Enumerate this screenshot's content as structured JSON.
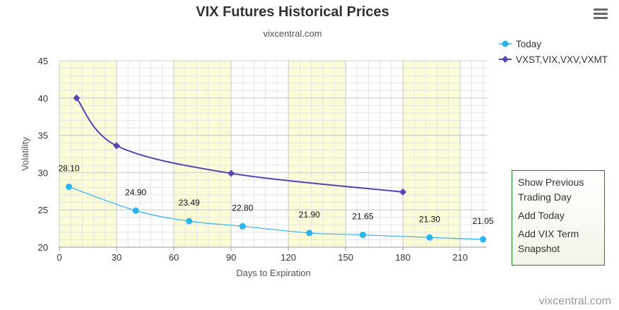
{
  "page": {
    "title": "VIX Futures Historical Prices",
    "subtitle": "vixcentral.com",
    "credit": "vixcentral.com"
  },
  "menu": {
    "icon": "hamburger-menu-icon"
  },
  "side_panel": {
    "items": [
      {
        "label": "Show Previous Trading Day"
      },
      {
        "label": "Add Today"
      },
      {
        "label": "Add VIX Term Snapshot"
      }
    ]
  },
  "colors": {
    "today": "#2db4f0",
    "indices": "#5545b2",
    "band": "#fbfbd8",
    "grid": "#e6e6e6"
  },
  "chart_data": {
    "type": "line",
    "title": "VIX Futures Historical Prices",
    "subtitle": "vixcentral.com",
    "xlabel": "Days to Expiration",
    "ylabel": "Volatility",
    "xlim": [
      0,
      224
    ],
    "ylim": [
      20,
      45
    ],
    "x_ticks": [
      0,
      30,
      60,
      90,
      120,
      150,
      180,
      210
    ],
    "y_ticks": [
      20,
      25,
      30,
      35,
      40,
      45
    ],
    "grid": true,
    "legend_position": "top-right",
    "series": [
      {
        "name": "Today",
        "color": "#2db4f0",
        "marker": "circle",
        "x": [
          5,
          40,
          68,
          96,
          131,
          159,
          194,
          222
        ],
        "y": [
          28.1,
          24.9,
          23.49,
          22.8,
          21.9,
          21.65,
          21.3,
          21.05
        ],
        "labels": [
          "28.10",
          "24.90",
          "23.49",
          "22.80",
          "21.90",
          "21.65",
          "21.30",
          "21.05"
        ]
      },
      {
        "name": "VXST,VIX,VXV,VXMT",
        "color": "#5545b2",
        "marker": "diamond",
        "x": [
          9,
          30,
          90,
          180
        ],
        "y": [
          40.0,
          33.6,
          29.9,
          27.4
        ]
      }
    ]
  }
}
